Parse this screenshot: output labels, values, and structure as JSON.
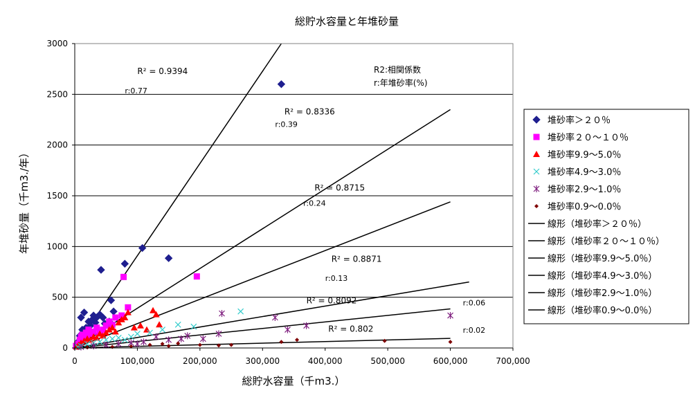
{
  "chart_data": {
    "type": "scatter",
    "title": "総貯水容量と年堆砂量",
    "xlabel": "総貯水容量（千m3.）",
    "ylabel": "年堆砂量（千m3./年）",
    "xlim": [
      0,
      700000
    ],
    "ylim": [
      0,
      3000
    ],
    "x_ticks": [
      0,
      100000,
      200000,
      300000,
      400000,
      500000,
      600000,
      700000
    ],
    "x_tick_labels": [
      "0",
      "100,000",
      "200,000",
      "300,000",
      "400,000",
      "500,000",
      "600,000",
      "700,000"
    ],
    "y_ticks": [
      0,
      500,
      1000,
      1500,
      2000,
      2500,
      3000
    ],
    "y_tick_labels": [
      "0",
      "500",
      "1000",
      "1500",
      "2000",
      "2500",
      "3000"
    ],
    "grid": "horizontal",
    "legend_position": "right",
    "note_lines": [
      "R2:相関係数",
      "r:年堆砂率(%)"
    ],
    "series": [
      {
        "name": "堆砂率＞２０％",
        "marker": "diamond",
        "color": "#1f1f8f",
        "points": [
          [
            5000,
            60
          ],
          [
            8000,
            120
          ],
          [
            10000,
            300
          ],
          [
            12000,
            180
          ],
          [
            15000,
            350
          ],
          [
            18000,
            200
          ],
          [
            20000,
            150
          ],
          [
            22000,
            260
          ],
          [
            25000,
            220
          ],
          [
            28000,
            280
          ],
          [
            30000,
            320
          ],
          [
            33000,
            250
          ],
          [
            35000,
            300
          ],
          [
            40000,
            330
          ],
          [
            42000,
            770
          ],
          [
            45000,
            300
          ],
          [
            48000,
            240
          ],
          [
            55000,
            260
          ],
          [
            58000,
            470
          ],
          [
            62000,
            360
          ],
          [
            80000,
            830
          ],
          [
            108000,
            985
          ],
          [
            150000,
            885
          ],
          [
            330000,
            2600
          ]
        ],
        "trend_end": [
          330000,
          3000
        ]
      },
      {
        "name": "堆砂率２０～１０％",
        "marker": "square",
        "color": "#ff00ff",
        "points": [
          [
            2000,
            20
          ],
          [
            5000,
            40
          ],
          [
            8000,
            80
          ],
          [
            10000,
            110
          ],
          [
            12000,
            130
          ],
          [
            15000,
            100
          ],
          [
            18000,
            150
          ],
          [
            20000,
            120
          ],
          [
            22000,
            180
          ],
          [
            25000,
            140
          ],
          [
            30000,
            160
          ],
          [
            35000,
            200
          ],
          [
            40000,
            150
          ],
          [
            45000,
            180
          ],
          [
            50000,
            220
          ],
          [
            55000,
            260
          ],
          [
            60000,
            230
          ],
          [
            65000,
            300
          ],
          [
            75000,
            320
          ],
          [
            78000,
            700
          ],
          [
            85000,
            400
          ],
          [
            195000,
            705
          ]
        ],
        "trend_end": [
          600000,
          2350
        ]
      },
      {
        "name": "堆砂率9.9～5.0％",
        "marker": "triangle",
        "color": "#ff0000",
        "points": [
          [
            3000,
            10
          ],
          [
            6000,
            30
          ],
          [
            10000,
            50
          ],
          [
            15000,
            70
          ],
          [
            20000,
            90
          ],
          [
            25000,
            80
          ],
          [
            30000,
            110
          ],
          [
            35000,
            100
          ],
          [
            40000,
            140
          ],
          [
            45000,
            120
          ],
          [
            50000,
            150
          ],
          [
            55000,
            180
          ],
          [
            60000,
            200
          ],
          [
            65000,
            160
          ],
          [
            70000,
            250
          ],
          [
            75000,
            280
          ],
          [
            80000,
            300
          ],
          [
            85000,
            350
          ],
          [
            95000,
            200
          ],
          [
            105000,
            220
          ],
          [
            115000,
            180
          ],
          [
            125000,
            370
          ],
          [
            130000,
            330
          ],
          [
            135000,
            230
          ]
        ],
        "trend_end": [
          600000,
          1440
        ]
      },
      {
        "name": "堆砂率4.9～3.0％",
        "marker": "x",
        "color": "#33cccc",
        "points": [
          [
            5000,
            10
          ],
          [
            10000,
            20
          ],
          [
            20000,
            40
          ],
          [
            30000,
            50
          ],
          [
            40000,
            60
          ],
          [
            50000,
            80
          ],
          [
            60000,
            90
          ],
          [
            70000,
            100
          ],
          [
            80000,
            80
          ],
          [
            90000,
            110
          ],
          [
            100000,
            140
          ],
          [
            120000,
            150
          ],
          [
            140000,
            180
          ],
          [
            165000,
            230
          ],
          [
            190000,
            210
          ],
          [
            265000,
            360
          ]
        ],
        "trend_end": [
          630000,
          650
        ]
      },
      {
        "name": "堆砂率2.9～1.0％",
        "marker": "asterisk",
        "color": "#7f1f7f",
        "points": [
          [
            10000,
            10
          ],
          [
            30000,
            20
          ],
          [
            50000,
            30
          ],
          [
            70000,
            40
          ],
          [
            90000,
            50
          ],
          [
            100000,
            40
          ],
          [
            110000,
            60
          ],
          [
            130000,
            110
          ],
          [
            150000,
            80
          ],
          [
            170000,
            90
          ],
          [
            180000,
            120
          ],
          [
            205000,
            90
          ],
          [
            230000,
            140
          ],
          [
            235000,
            340
          ],
          [
            320000,
            300
          ],
          [
            340000,
            180
          ],
          [
            370000,
            220
          ],
          [
            600000,
            320
          ]
        ],
        "trend_end": [
          600000,
          385
        ]
      },
      {
        "name": "堆砂率0.9～0.0％",
        "marker": "dot",
        "color": "#7f0000",
        "points": [
          [
            20000,
            5
          ],
          [
            60000,
            10
          ],
          [
            90000,
            15
          ],
          [
            120000,
            30
          ],
          [
            140000,
            40
          ],
          [
            150000,
            20
          ],
          [
            165000,
            45
          ],
          [
            200000,
            30
          ],
          [
            230000,
            25
          ],
          [
            250000,
            30
          ],
          [
            330000,
            60
          ],
          [
            355000,
            80
          ],
          [
            495000,
            70
          ],
          [
            600000,
            60
          ]
        ],
        "trend_end": [
          600000,
          95
        ]
      }
    ],
    "trend_legend_labels": [
      "線形（堆砂率＞２０％）",
      "線形（堆砂率２０～１０％）",
      "線形（堆砂率9.9～5.0％）",
      "線形（堆砂率4.9～3.0％）",
      "線形（堆砂率2.9～1.0％）",
      "線形（堆砂率0.9～0.0％）"
    ],
    "annotations": [
      {
        "r2": "R² = 0.9394",
        "r": "r:0.77",
        "at_r2": [
          100000,
          2700
        ],
        "at_r": [
          80000,
          2510
        ]
      },
      {
        "r2": "R² = 0.8336",
        "r": "r:0.39",
        "at_r2": [
          335000,
          2300
        ],
        "at_r": [
          320000,
          2180
        ]
      },
      {
        "r2": "R² = 0.8715",
        "r": "r:0.24",
        "at_r2": [
          383000,
          1550
        ],
        "at_r": [
          365000,
          1400
        ]
      },
      {
        "r2": "R² = 0.8871",
        "r": "r:0.13",
        "at_r2": [
          410000,
          850
        ],
        "at_r": [
          400000,
          660
        ]
      },
      {
        "r2": "R² = 0.8092",
        "r": "r:0.06",
        "at_r2": [
          370000,
          440
        ],
        "at_r": [
          620000,
          420
        ]
      },
      {
        "r2": "R² = 0.802",
        "r": "r:0.02",
        "at_r2": [
          405000,
          160
        ],
        "at_r": [
          620000,
          150
        ]
      }
    ]
  }
}
